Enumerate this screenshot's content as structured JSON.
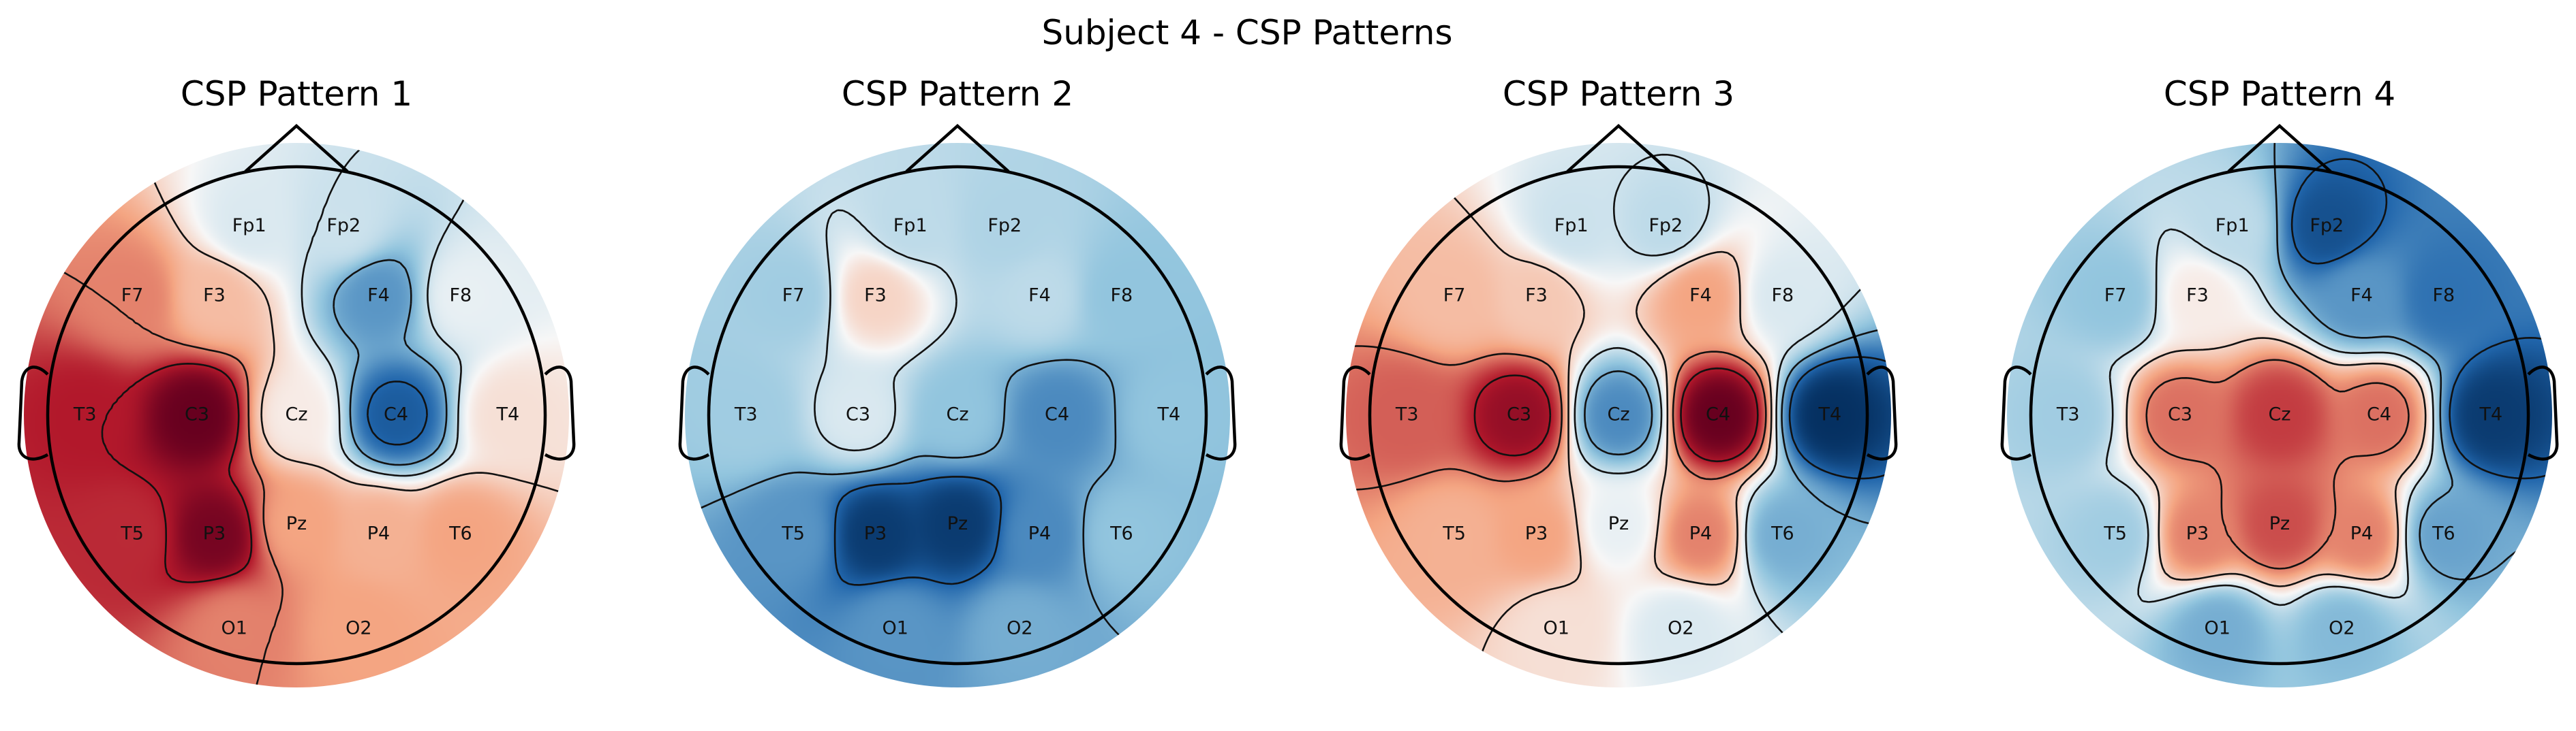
{
  "chart_data": {
    "type": "heatmap",
    "title": "Subject 4 - CSP Patterns",
    "colormap": "RdBu_r",
    "colors": {
      "positive": "#67001f",
      "neutral": "#f7f7f7",
      "negative": "#053061"
    },
    "panels": [
      {
        "title": "CSP Pattern 1",
        "channels": [
          {
            "name": "Fp1",
            "value": -0.1
          },
          {
            "name": "Fp2",
            "value": -0.15
          },
          {
            "name": "F7",
            "value": 0.45
          },
          {
            "name": "F3",
            "value": 0.25
          },
          {
            "name": "F4",
            "value": -0.55
          },
          {
            "name": "F8",
            "value": -0.05
          },
          {
            "name": "T3",
            "value": 0.75
          },
          {
            "name": "C3",
            "value": 1.0
          },
          {
            "name": "Cz",
            "value": 0.05
          },
          {
            "name": "C4",
            "value": -0.8
          },
          {
            "name": "T4",
            "value": 0.1
          },
          {
            "name": "T5",
            "value": 0.7
          },
          {
            "name": "P3",
            "value": 0.95
          },
          {
            "name": "Pz",
            "value": 0.35
          },
          {
            "name": "P4",
            "value": 0.3
          },
          {
            "name": "T6",
            "value": 0.35
          },
          {
            "name": "O1",
            "value": 0.45
          },
          {
            "name": "O2",
            "value": 0.35
          }
        ]
      },
      {
        "title": "CSP Pattern 2",
        "channels": [
          {
            "name": "Fp1",
            "value": -0.2
          },
          {
            "name": "Fp2",
            "value": -0.25
          },
          {
            "name": "F7",
            "value": -0.3
          },
          {
            "name": "F3",
            "value": 0.15
          },
          {
            "name": "F4",
            "value": -0.2
          },
          {
            "name": "F8",
            "value": -0.35
          },
          {
            "name": "T3",
            "value": -0.3
          },
          {
            "name": "C3",
            "value": -0.1
          },
          {
            "name": "Cz",
            "value": -0.35
          },
          {
            "name": "C4",
            "value": -0.6
          },
          {
            "name": "T4",
            "value": -0.35
          },
          {
            "name": "T5",
            "value": -0.55
          },
          {
            "name": "P3",
            "value": -0.95
          },
          {
            "name": "Pz",
            "value": -0.95
          },
          {
            "name": "P4",
            "value": -0.6
          },
          {
            "name": "T6",
            "value": -0.35
          },
          {
            "name": "O1",
            "value": -0.55
          },
          {
            "name": "O2",
            "value": -0.45
          }
        ]
      },
      {
        "title": "CSP Pattern 3",
        "channels": [
          {
            "name": "Fp1",
            "value": -0.15
          },
          {
            "name": "Fp2",
            "value": -0.2
          },
          {
            "name": "F7",
            "value": 0.25
          },
          {
            "name": "F3",
            "value": 0.2
          },
          {
            "name": "F4",
            "value": 0.35
          },
          {
            "name": "F8",
            "value": -0.1
          },
          {
            "name": "T3",
            "value": 0.55
          },
          {
            "name": "C3",
            "value": 0.85
          },
          {
            "name": "Cz",
            "value": -0.6
          },
          {
            "name": "C4",
            "value": 1.0
          },
          {
            "name": "T4",
            "value": -1.0
          },
          {
            "name": "T5",
            "value": 0.3
          },
          {
            "name": "P3",
            "value": 0.35
          },
          {
            "name": "Pz",
            "value": -0.05
          },
          {
            "name": "P4",
            "value": 0.45
          },
          {
            "name": "T6",
            "value": -0.45
          },
          {
            "name": "O1",
            "value": 0.1
          },
          {
            "name": "O2",
            "value": -0.1
          }
        ]
      },
      {
        "title": "CSP Pattern 4",
        "channels": [
          {
            "name": "Fp1",
            "value": -0.2
          },
          {
            "name": "Fp2",
            "value": -0.85
          },
          {
            "name": "F7",
            "value": -0.35
          },
          {
            "name": "F3",
            "value": 0.05
          },
          {
            "name": "F4",
            "value": -0.55
          },
          {
            "name": "F8",
            "value": -0.7
          },
          {
            "name": "T3",
            "value": -0.3
          },
          {
            "name": "C3",
            "value": 0.5
          },
          {
            "name": "Cz",
            "value": 0.65
          },
          {
            "name": "C4",
            "value": 0.5
          },
          {
            "name": "T4",
            "value": -0.95
          },
          {
            "name": "T5",
            "value": -0.3
          },
          {
            "name": "P3",
            "value": 0.45
          },
          {
            "name": "Pz",
            "value": 0.6
          },
          {
            "name": "P4",
            "value": 0.45
          },
          {
            "name": "T6",
            "value": -0.5
          },
          {
            "name": "O1",
            "value": -0.45
          },
          {
            "name": "O2",
            "value": -0.4
          }
        ]
      }
    ]
  }
}
